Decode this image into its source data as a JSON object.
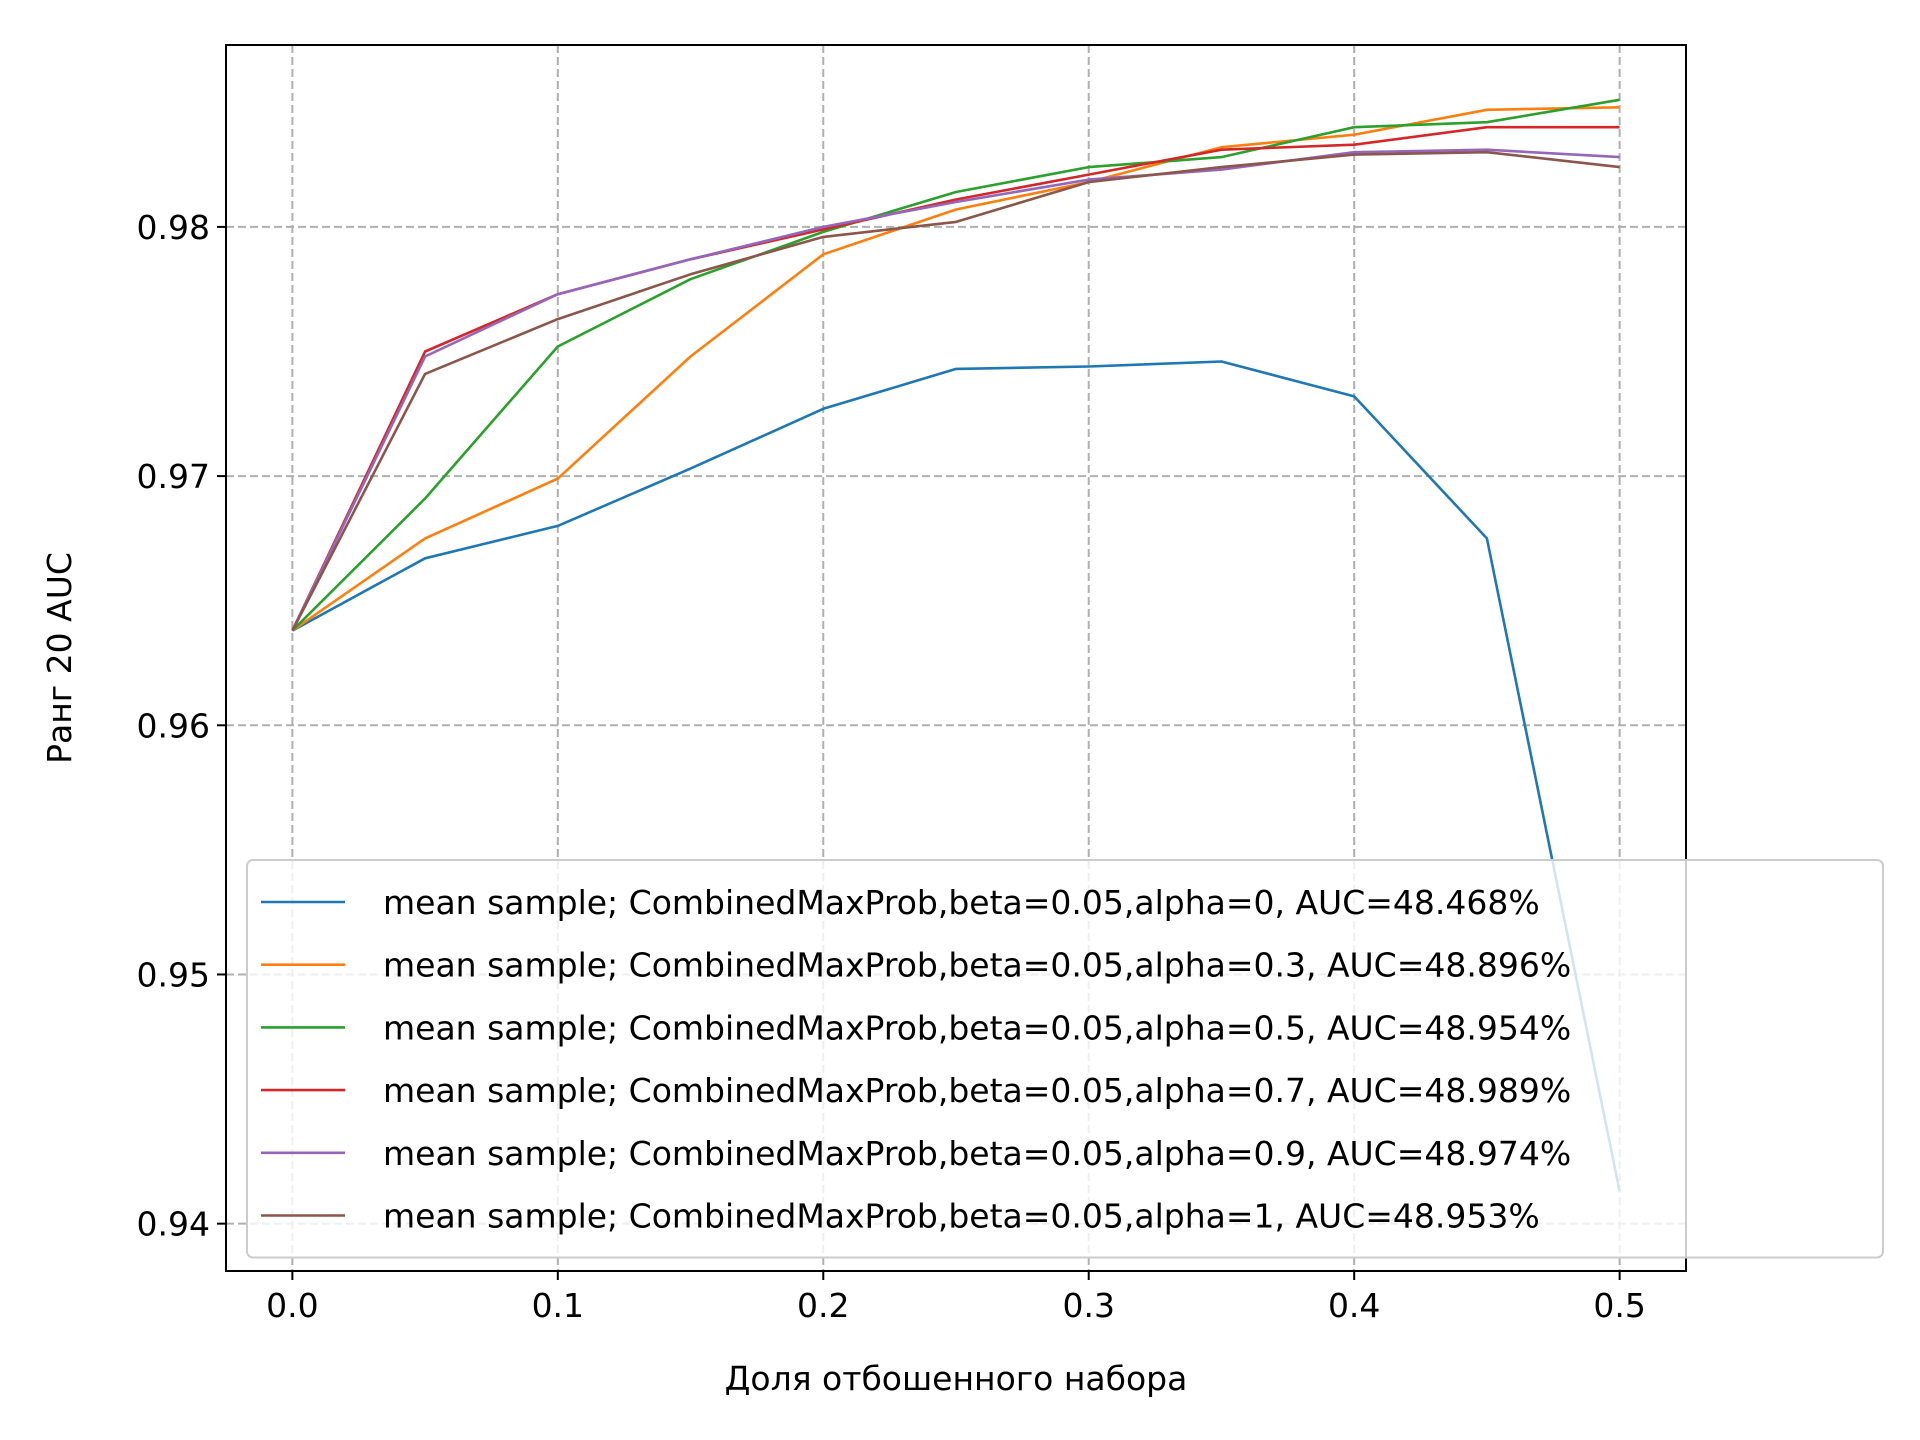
{
  "chart_data": {
    "type": "line",
    "title": "",
    "xlabel": "Доля отбошенного набора",
    "ylabel": "Ранг 20 AUC",
    "xlim": [
      -0.025,
      0.525
    ],
    "ylim": [
      0.9381,
      0.9873
    ],
    "xticks": [
      0.0,
      0.1,
      0.2,
      0.3,
      0.4,
      0.5
    ],
    "xtick_labels": [
      "0.0",
      "0.1",
      "0.2",
      "0.3",
      "0.4",
      "0.5"
    ],
    "yticks": [
      0.94,
      0.95,
      0.96,
      0.97,
      0.98
    ],
    "ytick_labels": [
      "0.94",
      "0.95",
      "0.96",
      "0.97",
      "0.98"
    ],
    "grid": true,
    "legend_position": "lower-right",
    "x": [
      0.0,
      0.05,
      0.1,
      0.15,
      0.2,
      0.25,
      0.3,
      0.35,
      0.4,
      0.45,
      0.5
    ],
    "series": [
      {
        "name": "mean sample;  CombinedMaxProb,beta=0.05,alpha=0, AUC=48.468%",
        "color": "#1f77b4",
        "values": [
          0.9638,
          0.9667,
          0.968,
          0.9703,
          0.9727,
          0.9743,
          0.9744,
          0.9746,
          0.9732,
          0.9675,
          0.9413
        ]
      },
      {
        "name": "mean sample;  CombinedMaxProb,beta=0.05,alpha=0.3, AUC=48.896%",
        "color": "#ff7f0e",
        "values": [
          0.9638,
          0.9675,
          0.9699,
          0.9748,
          0.9789,
          0.9807,
          0.9818,
          0.9832,
          0.9837,
          0.9847,
          0.9848
        ]
      },
      {
        "name": "mean sample;  CombinedMaxProb,beta=0.05,alpha=0.5, AUC=48.954%",
        "color": "#2ca02c",
        "values": [
          0.9638,
          0.9691,
          0.9752,
          0.9779,
          0.9798,
          0.9814,
          0.9824,
          0.9828,
          0.984,
          0.9842,
          0.9851
        ]
      },
      {
        "name": "mean sample;  CombinedMaxProb,beta=0.05,alpha=0.7, AUC=48.989%",
        "color": "#d62728",
        "values": [
          0.9638,
          0.975,
          0.9773,
          0.9787,
          0.9799,
          0.9811,
          0.9821,
          0.9831,
          0.9833,
          0.984,
          0.984
        ]
      },
      {
        "name": "mean sample;  CombinedMaxProb,beta=0.05,alpha=0.9, AUC=48.974%",
        "color": "#9467bd",
        "values": [
          0.9638,
          0.9748,
          0.9773,
          0.9787,
          0.98,
          0.981,
          0.9819,
          0.9823,
          0.983,
          0.9831,
          0.9828
        ]
      },
      {
        "name": "mean sample;  CombinedMaxProb,beta=0.05,alpha=1, AUC=48.953%",
        "color": "#8c564b",
        "values": [
          0.9638,
          0.9741,
          0.9763,
          0.9781,
          0.9796,
          0.9802,
          0.9818,
          0.9824,
          0.9829,
          0.983,
          0.9824
        ]
      }
    ]
  }
}
